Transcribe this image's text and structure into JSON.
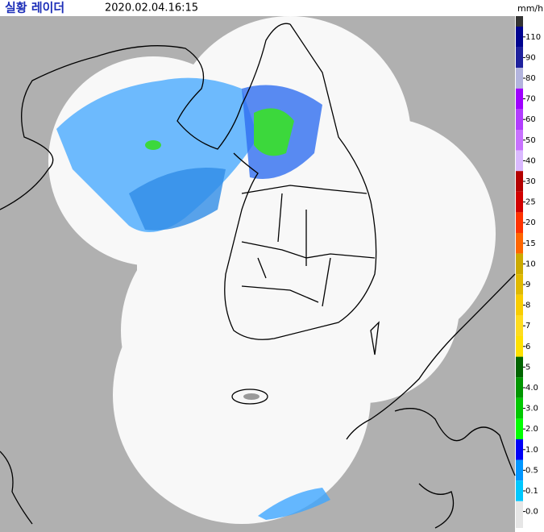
{
  "header": {
    "title": "실황 레이더",
    "timestamp": "2020.02.04.16:15"
  },
  "legend": {
    "unit": "mm/h",
    "entries": [
      {
        "label": "110",
        "color": "#000390"
      },
      {
        "label": "90",
        "color": "#1f219d"
      },
      {
        "label": "80",
        "color": "#b3b4de"
      },
      {
        "label": "70",
        "color": "#9f00ff"
      },
      {
        "label": "60",
        "color": "#b23dff"
      },
      {
        "label": "50",
        "color": "#c872ff"
      },
      {
        "label": "40",
        "color": "#dab9ff"
      },
      {
        "label": "30",
        "color": "#b40000"
      },
      {
        "label": "25",
        "color": "#d20000"
      },
      {
        "label": "20",
        "color": "#ff3200"
      },
      {
        "label": "15",
        "color": "#ff6600"
      },
      {
        "label": "10",
        "color": "#ccaa00"
      },
      {
        "label": "9",
        "color": "#e0b900"
      },
      {
        "label": "8",
        "color": "#f9cd00"
      },
      {
        "label": "7",
        "color": "#ffdc1f"
      },
      {
        "label": "6",
        "color": "#ffe100"
      },
      {
        "label": "5",
        "color": "#006400"
      },
      {
        "label": "4.0",
        "color": "#009600"
      },
      {
        "label": "3.0",
        "color": "#00c800"
      },
      {
        "label": "2.0",
        "color": "#00ff00"
      },
      {
        "label": "1.0",
        "color": "#0000f6"
      },
      {
        "label": "0.5",
        "color": "#0096ff"
      },
      {
        "label": "0.1",
        "color": "#00c8ff"
      },
      {
        "label": "0.0",
        "color": "#e6e6e6"
      }
    ]
  }
}
